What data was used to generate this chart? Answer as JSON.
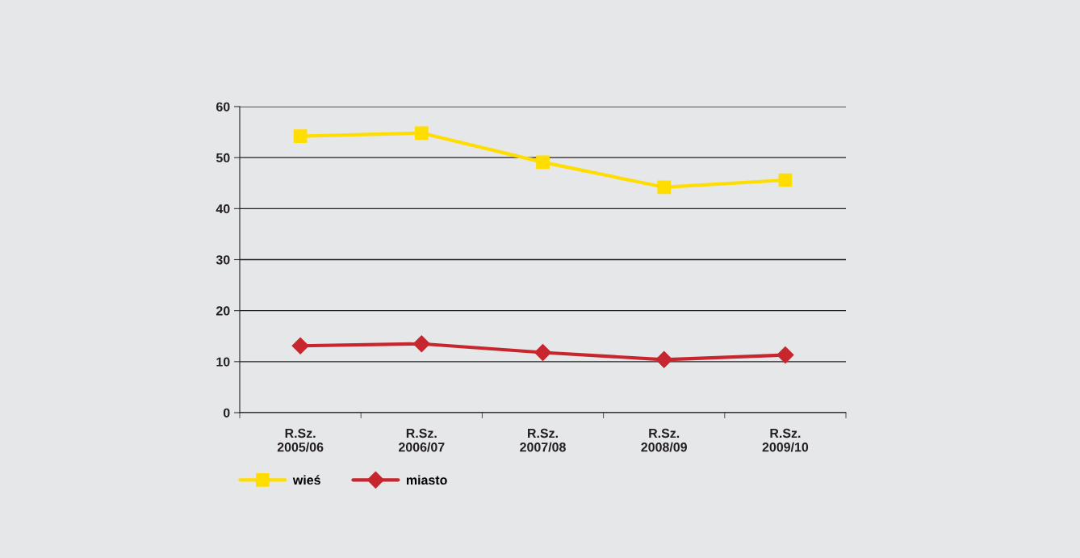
{
  "chart_data": {
    "type": "line",
    "categories": [
      "R.Sz.\n2005/06",
      "R.Sz.\n2006/07",
      "R.Sz.\n2007/08",
      "R.Sz.\n2008/09",
      "R.Sz.\n2009/10"
    ],
    "series": [
      {
        "name": "wieś",
        "color": "#ffdd00",
        "marker": "square",
        "values": [
          54.2,
          54.8,
          49.1,
          44.2,
          45.6
        ]
      },
      {
        "name": "miasto",
        "color": "#c8262e",
        "marker": "diamond",
        "values": [
          13.1,
          13.5,
          11.8,
          10.4,
          11.3
        ]
      }
    ],
    "ylim": [
      0,
      60
    ],
    "yticks": [
      0,
      10,
      20,
      30,
      40,
      50,
      60
    ],
    "grid": "y",
    "legend": "bottom",
    "line_style": "solid"
  }
}
